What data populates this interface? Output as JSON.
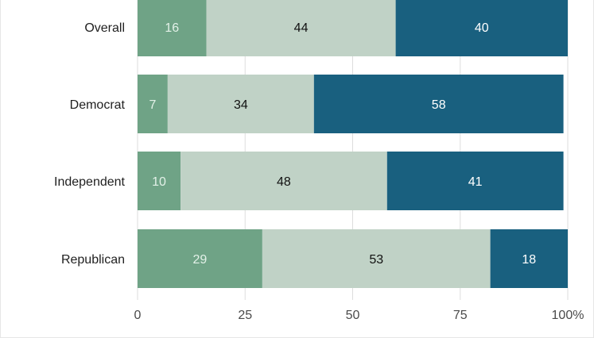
{
  "chart_data": {
    "type": "bar",
    "orientation": "horizontal",
    "stacked": true,
    "categories": [
      "Overall",
      "Democrat",
      "Independent",
      "Republican"
    ],
    "series": [
      {
        "values": [
          16,
          7,
          10,
          29
        ],
        "color": "#6fa386",
        "label_color": "#e3f1e8"
      },
      {
        "values": [
          44,
          34,
          48,
          53
        ],
        "color": "#c0d2c6",
        "label_color": "#111111"
      },
      {
        "values": [
          40,
          58,
          41,
          18
        ],
        "color": "#19607f",
        "label_color": "#ffffff"
      }
    ],
    "xlim": [
      0,
      100
    ],
    "x_ticks": [
      "0",
      "25",
      "50",
      "75",
      "100"
    ],
    "x_tick_suffix": "%",
    "grid": true,
    "grid_color": "#dddddd",
    "title": "",
    "xlabel": "",
    "ylabel": ""
  }
}
